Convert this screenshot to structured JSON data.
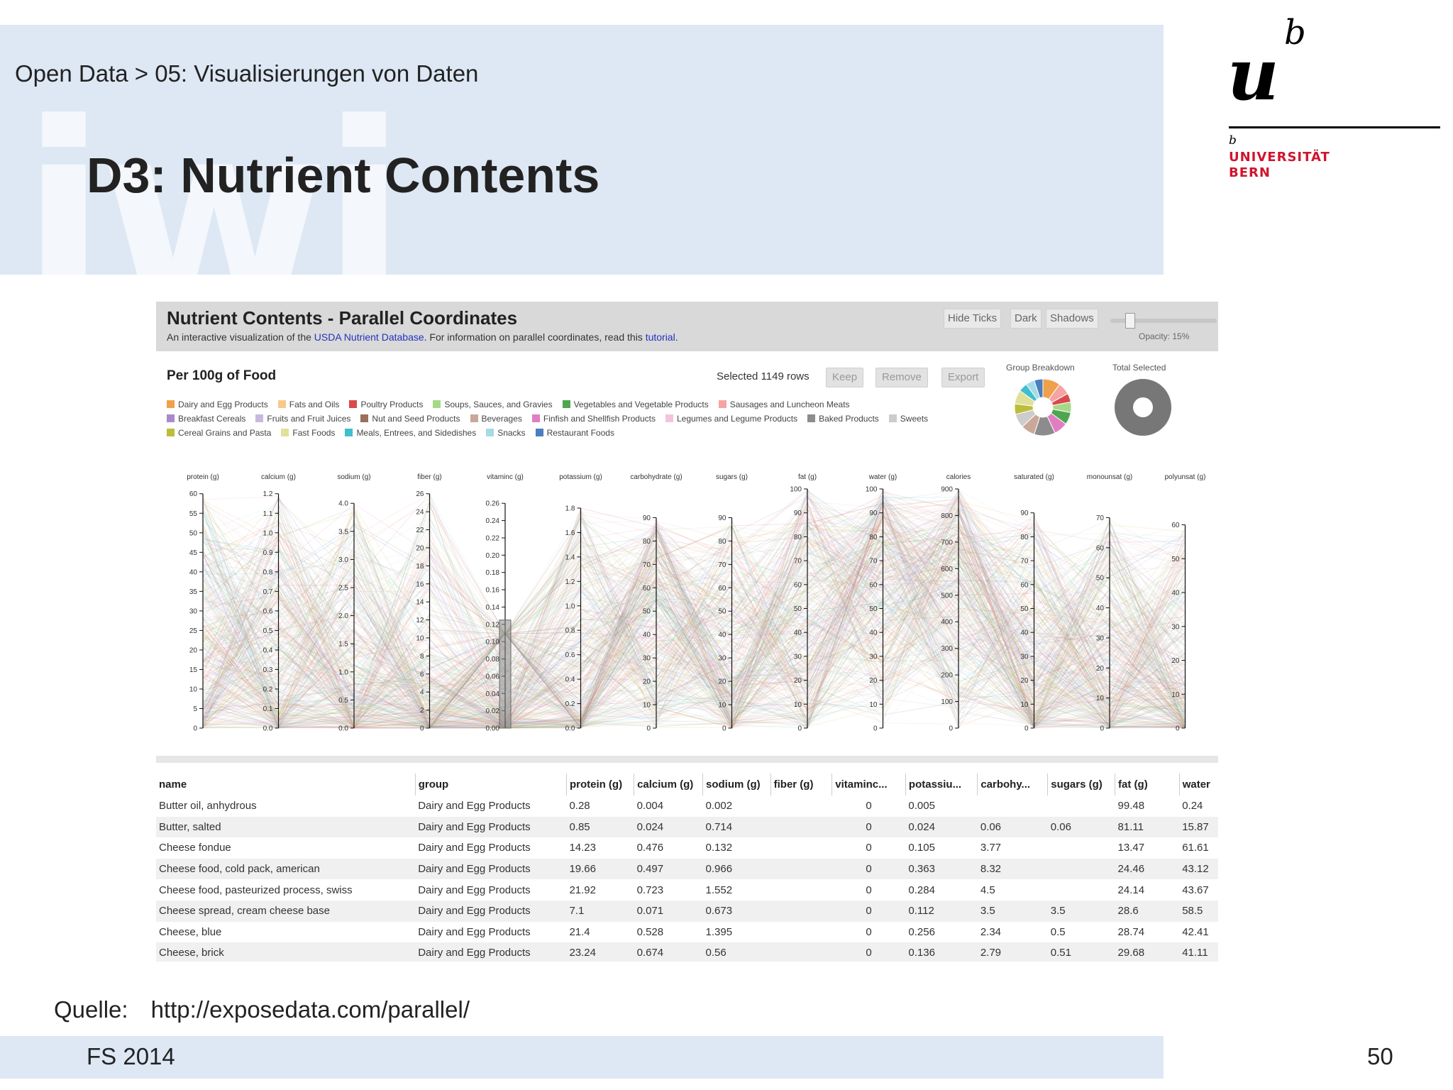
{
  "slide": {
    "breadcrumb": "Open Data > 05: Visualisierungen von Daten",
    "title": "D3: Nutrient Contents",
    "watermark": "iwi",
    "logo": {
      "u": "u",
      "b": "b",
      "name_line1": "UNIVERSITÄT",
      "name_line2": "BERN"
    },
    "source_label": "Quelle:",
    "source_url": "http://exposedata.com/parallel/",
    "semester": "FS 2014",
    "page_number": "50"
  },
  "app": {
    "title": "Nutrient Contents - Parallel Coordinates",
    "subtitle_prefix": "An interactive visualization of the ",
    "subtitle_link1": "USDA Nutrient Database",
    "subtitle_mid": ". For information on parallel coordinates, read this ",
    "subtitle_link2": "tutorial",
    "subtitle_suffix": ".",
    "toolbar": {
      "hide_ticks": "Hide Ticks",
      "dark": "Dark",
      "shadows": "Shadows",
      "opacity_label": "Opacity: 15%",
      "opacity_value": 0.15
    },
    "section_title": "Per 100g of Food",
    "selected_text": "Selected 1149 rows",
    "actions": {
      "keep": "Keep",
      "remove": "Remove",
      "export": "Export"
    },
    "group_breakdown_label": "Group Breakdown",
    "total_selected_label": "Total Selected",
    "legend": [
      {
        "label": "Dairy and Egg Products",
        "color": "#f0a04b"
      },
      {
        "label": "Fats and Oils",
        "color": "#f8c98a"
      },
      {
        "label": "Poultry Products",
        "color": "#d94a4a"
      },
      {
        "label": "Soups, Sauces, and Gravies",
        "color": "#a6d88a"
      },
      {
        "label": "Vegetables and Vegetable Products",
        "color": "#4fa64f"
      },
      {
        "label": "Sausages and Luncheon Meats",
        "color": "#f5a3a3"
      },
      {
        "label": "Breakfast Cereals",
        "color": "#a989c9"
      },
      {
        "label": "Fruits and Fruit Juices",
        "color": "#c9b8de"
      },
      {
        "label": "Nut and Seed Products",
        "color": "#9a6f5c"
      },
      {
        "label": "Beverages",
        "color": "#c9a89a"
      },
      {
        "label": "Finfish and Shellfish Products",
        "color": "#e07ec2"
      },
      {
        "label": "Legumes and Legume Products",
        "color": "#f4c2dd"
      },
      {
        "label": "Baked Products",
        "color": "#8c8c8c"
      },
      {
        "label": "Sweets",
        "color": "#cccccc"
      },
      {
        "label": "Cereal Grains and Pasta",
        "color": "#bcbd3b"
      },
      {
        "label": "Fast Foods",
        "color": "#e0e09a"
      },
      {
        "label": "Meals, Entrees, and Sidedishes",
        "color": "#3fbfcf"
      },
      {
        "label": "Snacks",
        "color": "#a5dbe6"
      },
      {
        "label": "Restaurant Foods",
        "color": "#4a7fbf"
      }
    ],
    "group_breakdown": [
      {
        "color": "#f0a04b",
        "value": 10
      },
      {
        "color": "#f5a3a3",
        "value": 7
      },
      {
        "color": "#d94a4a",
        "value": 5
      },
      {
        "color": "#a6d88a",
        "value": 6
      },
      {
        "color": "#4fa64f",
        "value": 7
      },
      {
        "color": "#e07ec2",
        "value": 8
      },
      {
        "color": "#8c8c8c",
        "value": 12
      },
      {
        "color": "#c9a89a",
        "value": 8
      },
      {
        "color": "#cccccc",
        "value": 8
      },
      {
        "color": "#bcbd3b",
        "value": 6
      },
      {
        "color": "#e0e09a",
        "value": 8
      },
      {
        "color": "#3fbfcf",
        "value": 5
      },
      {
        "color": "#a5dbe6",
        "value": 5
      },
      {
        "color": "#4a7fbf",
        "value": 5
      }
    ],
    "total_selected_fraction": 1.0
  },
  "chart_data": {
    "type": "parallel-coordinates",
    "axes": [
      {
        "label": "protein (g)",
        "ticks": [
          "0",
          "5",
          "10",
          "15",
          "20",
          "25",
          "30",
          "35",
          "40",
          "45",
          "50",
          "55",
          "60"
        ]
      },
      {
        "label": "calcium (g)",
        "ticks": [
          "0.0",
          "0.1",
          "0.2",
          "0.3",
          "0.4",
          "0.5",
          "0.6",
          "0.7",
          "0.8",
          "0.9",
          "1.0",
          "1.1",
          "1.2"
        ]
      },
      {
        "label": "sodium (g)",
        "ticks": [
          "0.0",
          "0.5",
          "1.0",
          "1.5",
          "2.0",
          "2.5",
          "3.0",
          "3.5",
          "4.0"
        ]
      },
      {
        "label": "fiber (g)",
        "ticks": [
          "0",
          "2",
          "4",
          "6",
          "8",
          "10",
          "12",
          "14",
          "16",
          "18",
          "20",
          "22",
          "24",
          "26"
        ]
      },
      {
        "label": "vitaminc (g)",
        "ticks": [
          "0.00",
          "0.02",
          "0.04",
          "0.06",
          "0.08",
          "0.10",
          "0.12",
          "0.14",
          "0.16",
          "0.18",
          "0.20",
          "0.22",
          "0.24",
          "0.26"
        ]
      },
      {
        "label": "potassium (g)",
        "ticks": [
          "0.0",
          "0.2",
          "0.4",
          "0.6",
          "0.8",
          "1.0",
          "1.2",
          "1.4",
          "1.6",
          "1.8"
        ]
      },
      {
        "label": "carbohydrate (g)",
        "ticks": [
          "0",
          "10",
          "20",
          "30",
          "40",
          "50",
          "60",
          "70",
          "80",
          "90"
        ]
      },
      {
        "label": "sugars (g)",
        "ticks": [
          "0",
          "10",
          "20",
          "30",
          "40",
          "50",
          "60",
          "70",
          "80",
          "90"
        ]
      },
      {
        "label": "fat (g)",
        "ticks": [
          "0",
          "10",
          "20",
          "30",
          "40",
          "50",
          "60",
          "70",
          "80",
          "90",
          "100"
        ]
      },
      {
        "label": "water (g)",
        "ticks": [
          "0",
          "10",
          "20",
          "30",
          "40",
          "50",
          "60",
          "70",
          "80",
          "90",
          "100"
        ]
      },
      {
        "label": "calories",
        "ticks": [
          "0",
          "100",
          "200",
          "300",
          "400",
          "500",
          "600",
          "700",
          "800",
          "900"
        ]
      },
      {
        "label": "saturated (g)",
        "ticks": [
          "0",
          "10",
          "20",
          "30",
          "40",
          "50",
          "60",
          "70",
          "80",
          "90"
        ]
      },
      {
        "label": "monounsat (g)",
        "ticks": [
          "0",
          "10",
          "20",
          "30",
          "40",
          "50",
          "60",
          "70"
        ]
      },
      {
        "label": "polyunsat (g)",
        "ticks": [
          "0",
          "10",
          "20",
          "30",
          "40",
          "50",
          "60"
        ]
      }
    ],
    "brush": {
      "axis": "vitaminc (g)",
      "range": [
        0.0,
        0.125
      ]
    }
  },
  "table": {
    "columns": [
      "name",
      "group",
      "protein (g)",
      "calcium (g)",
      "sodium (g)",
      "fiber (g)",
      "vitaminc...",
      "potassiu...",
      "carbohy...",
      "sugars (g)",
      "fat (g)",
      "water"
    ],
    "rows": [
      [
        "Butter oil, anhydrous",
        "Dairy and Egg Products",
        "0.28",
        "0.004",
        "0.002",
        "",
        "0",
        "0.005",
        "",
        "",
        "99.48",
        "0.24"
      ],
      [
        "Butter, salted",
        "Dairy and Egg Products",
        "0.85",
        "0.024",
        "0.714",
        "",
        "0",
        "0.024",
        "0.06",
        "0.06",
        "81.11",
        "15.87"
      ],
      [
        "Cheese fondue",
        "Dairy and Egg Products",
        "14.23",
        "0.476",
        "0.132",
        "",
        "0",
        "0.105",
        "3.77",
        "",
        "13.47",
        "61.61"
      ],
      [
        "Cheese food, cold pack, american",
        "Dairy and Egg Products",
        "19.66",
        "0.497",
        "0.966",
        "",
        "0",
        "0.363",
        "8.32",
        "",
        "24.46",
        "43.12"
      ],
      [
        "Cheese food, pasteurized process, swiss",
        "Dairy and Egg Products",
        "21.92",
        "0.723",
        "1.552",
        "",
        "0",
        "0.284",
        "4.5",
        "",
        "24.14",
        "43.67"
      ],
      [
        "Cheese spread, cream cheese base",
        "Dairy and Egg Products",
        "7.1",
        "0.071",
        "0.673",
        "",
        "0",
        "0.112",
        "3.5",
        "3.5",
        "28.6",
        "58.5"
      ],
      [
        "Cheese, blue",
        "Dairy and Egg Products",
        "21.4",
        "0.528",
        "1.395",
        "",
        "0",
        "0.256",
        "2.34",
        "0.5",
        "28.74",
        "42.41"
      ],
      [
        "Cheese, brick",
        "Dairy and Egg Products",
        "23.24",
        "0.674",
        "0.56",
        "",
        "0",
        "0.136",
        "2.79",
        "0.51",
        "29.68",
        "41.11"
      ]
    ]
  }
}
